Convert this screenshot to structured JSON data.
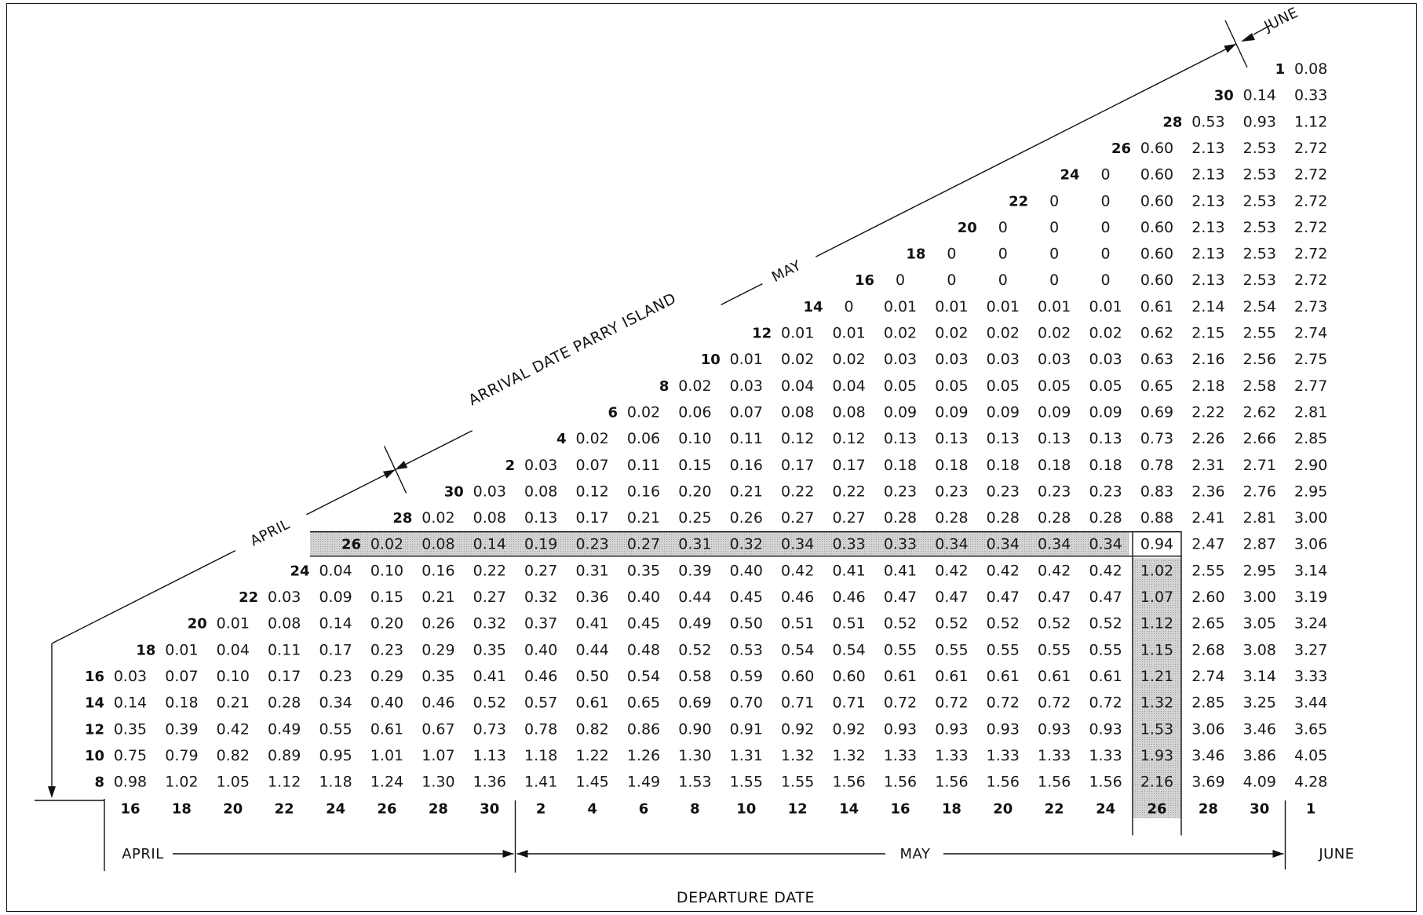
{
  "labels": {
    "arrival_title": "ARRIVAL DATE PARRY ISLAND",
    "departure_title": "DEPARTURE DATE",
    "arrival_months": [
      "APRIL",
      "MAY",
      "JUNE"
    ],
    "departure_months": [
      "APRIL",
      "MAY",
      "JUNE"
    ]
  },
  "colors": {
    "highlight": "#c9c9c9",
    "ink": "#111111"
  },
  "departure_dates": [
    "16",
    "18",
    "20",
    "22",
    "24",
    "26",
    "28",
    "30",
    "2",
    "4",
    "6",
    "8",
    "10",
    "12",
    "14",
    "16",
    "18",
    "20",
    "22",
    "24",
    "26",
    "28",
    "30",
    "1"
  ],
  "rows": [
    {
      "arrival": "1",
      "values": [
        "0.08"
      ]
    },
    {
      "arrival": "30",
      "values": [
        "0.14",
        "0.33"
      ]
    },
    {
      "arrival": "28",
      "values": [
        "0.53",
        "0.93",
        "1.12"
      ]
    },
    {
      "arrival": "26",
      "values": [
        "0.60",
        "2.13",
        "2.53",
        "2.72"
      ]
    },
    {
      "arrival": "24",
      "values": [
        "0",
        "0.60",
        "2.13",
        "2.53",
        "2.72"
      ]
    },
    {
      "arrival": "22",
      "values": [
        "0",
        "0",
        "0.60",
        "2.13",
        "2.53",
        "2.72"
      ]
    },
    {
      "arrival": "20",
      "values": [
        "0",
        "0",
        "0",
        "0.60",
        "2.13",
        "2.53",
        "2.72"
      ]
    },
    {
      "arrival": "18",
      "values": [
        "0",
        "0",
        "0",
        "0",
        "0.60",
        "2.13",
        "2.53",
        "2.72"
      ]
    },
    {
      "arrival": "16",
      "values": [
        "0",
        "0",
        "0",
        "0",
        "0",
        "0.60",
        "2.13",
        "2.53",
        "2.72"
      ]
    },
    {
      "arrival": "14",
      "values": [
        "0",
        "0.01",
        "0.01",
        "0.01",
        "0.01",
        "0.01",
        "0.61",
        "2.14",
        "2.54",
        "2.73"
      ]
    },
    {
      "arrival": "12",
      "values": [
        "0.01",
        "0.01",
        "0.02",
        "0.02",
        "0.02",
        "0.02",
        "0.02",
        "0.62",
        "2.15",
        "2.55",
        "2.74"
      ]
    },
    {
      "arrival": "10",
      "values": [
        "0.01",
        "0.02",
        "0.02",
        "0.03",
        "0.03",
        "0.03",
        "0.03",
        "0.03",
        "0.63",
        "2.16",
        "2.56",
        "2.75"
      ]
    },
    {
      "arrival": "8",
      "values": [
        "0.02",
        "0.03",
        "0.04",
        "0.04",
        "0.05",
        "0.05",
        "0.05",
        "0.05",
        "0.05",
        "0.65",
        "2.18",
        "2.58",
        "2.77"
      ]
    },
    {
      "arrival": "6",
      "values": [
        "0.02",
        "0.06",
        "0.07",
        "0.08",
        "0.08",
        "0.09",
        "0.09",
        "0.09",
        "0.09",
        "0.09",
        "0.69",
        "2.22",
        "2.62",
        "2.81"
      ]
    },
    {
      "arrival": "4",
      "values": [
        "0.02",
        "0.06",
        "0.10",
        "0.11",
        "0.12",
        "0.12",
        "0.13",
        "0.13",
        "0.13",
        "0.13",
        "0.13",
        "0.73",
        "2.26",
        "2.66",
        "2.85"
      ]
    },
    {
      "arrival": "2",
      "values": [
        "0.03",
        "0.07",
        "0.11",
        "0.15",
        "0.16",
        "0.17",
        "0.17",
        "0.18",
        "0.18",
        "0.18",
        "0.18",
        "0.18",
        "0.78",
        "2.31",
        "2.71",
        "2.90"
      ]
    },
    {
      "arrival": "30",
      "values": [
        "0.03",
        "0.08",
        "0.12",
        "0.16",
        "0.20",
        "0.21",
        "0.22",
        "0.22",
        "0.23",
        "0.23",
        "0.23",
        "0.23",
        "0.23",
        "0.83",
        "2.36",
        "2.76",
        "2.95"
      ]
    },
    {
      "arrival": "28",
      "values": [
        "0.02",
        "0.08",
        "0.13",
        "0.17",
        "0.21",
        "0.25",
        "0.26",
        "0.27",
        "0.27",
        "0.28",
        "0.28",
        "0.28",
        "0.28",
        "0.28",
        "0.88",
        "2.41",
        "2.81",
        "3.00"
      ]
    },
    {
      "arrival": "26",
      "values": [
        "0.02",
        "0.08",
        "0.14",
        "0.19",
        "0.23",
        "0.27",
        "0.31",
        "0.32",
        "0.34",
        "0.33",
        "0.33",
        "0.34",
        "0.34",
        "0.34",
        "0.34",
        "0.94",
        "2.47",
        "2.87",
        "3.06"
      ]
    },
    {
      "arrival": "24",
      "values": [
        "0.04",
        "0.10",
        "0.16",
        "0.22",
        "0.27",
        "0.31",
        "0.35",
        "0.39",
        "0.40",
        "0.42",
        "0.41",
        "0.41",
        "0.42",
        "0.42",
        "0.42",
        "0.42",
        "1.02",
        "2.55",
        "2.95",
        "3.14"
      ]
    },
    {
      "arrival": "22",
      "values": [
        "0.03",
        "0.09",
        "0.15",
        "0.21",
        "0.27",
        "0.32",
        "0.36",
        "0.40",
        "0.44",
        "0.45",
        "0.46",
        "0.46",
        "0.47",
        "0.47",
        "0.47",
        "0.47",
        "0.47",
        "1.07",
        "2.60",
        "3.00",
        "3.19"
      ]
    },
    {
      "arrival": "20",
      "values": [
        "0.01",
        "0.08",
        "0.14",
        "0.20",
        "0.26",
        "0.32",
        "0.37",
        "0.41",
        "0.45",
        "0.49",
        "0.50",
        "0.51",
        "0.51",
        "0.52",
        "0.52",
        "0.52",
        "0.52",
        "0.52",
        "1.12",
        "2.65",
        "3.05",
        "3.24"
      ]
    },
    {
      "arrival": "18",
      "values": [
        "0.01",
        "0.04",
        "0.11",
        "0.17",
        "0.23",
        "0.29",
        "0.35",
        "0.40",
        "0.44",
        "0.48",
        "0.52",
        "0.53",
        "0.54",
        "0.54",
        "0.55",
        "0.55",
        "0.55",
        "0.55",
        "0.55",
        "1.15",
        "2.68",
        "3.08",
        "3.27"
      ]
    },
    {
      "arrival": "16",
      "values": [
        "0.03",
        "0.07",
        "0.10",
        "0.17",
        "0.23",
        "0.29",
        "0.35",
        "0.41",
        "0.46",
        "0.50",
        "0.54",
        "0.58",
        "0.59",
        "0.60",
        "0.60",
        "0.61",
        "0.61",
        "0.61",
        "0.61",
        "0.61",
        "1.21",
        "2.74",
        "3.14",
        "3.33"
      ]
    },
    {
      "arrival": "14",
      "values": [
        "0.14",
        "0.18",
        "0.21",
        "0.28",
        "0.34",
        "0.40",
        "0.46",
        "0.52",
        "0.57",
        "0.61",
        "0.65",
        "0.69",
        "0.70",
        "0.71",
        "0.71",
        "0.72",
        "0.72",
        "0.72",
        "0.72",
        "0.72",
        "1.32",
        "2.85",
        "3.25",
        "3.44"
      ]
    },
    {
      "arrival": "12",
      "values": [
        "0.35",
        "0.39",
        "0.42",
        "0.49",
        "0.55",
        "0.61",
        "0.67",
        "0.73",
        "0.78",
        "0.82",
        "0.86",
        "0.90",
        "0.91",
        "0.92",
        "0.92",
        "0.93",
        "0.93",
        "0.93",
        "0.93",
        "0.93",
        "1.53",
        "3.06",
        "3.46",
        "3.65"
      ]
    },
    {
      "arrival": "10",
      "values": [
        "0.75",
        "0.79",
        "0.82",
        "0.89",
        "0.95",
        "1.01",
        "1.07",
        "1.13",
        "1.18",
        "1.22",
        "1.26",
        "1.30",
        "1.31",
        "1.32",
        "1.32",
        "1.33",
        "1.33",
        "1.33",
        "1.33",
        "1.33",
        "1.93",
        "3.46",
        "3.86",
        "4.05"
      ]
    },
    {
      "arrival": "8",
      "values": [
        "0.98",
        "1.02",
        "1.05",
        "1.12",
        "1.18",
        "1.24",
        "1.30",
        "1.36",
        "1.41",
        "1.45",
        "1.49",
        "1.53",
        "1.55",
        "1.55",
        "1.56",
        "1.56",
        "1.56",
        "1.56",
        "1.56",
        "1.56",
        "2.16",
        "3.69",
        "4.09",
        "4.28"
      ]
    }
  ]
}
